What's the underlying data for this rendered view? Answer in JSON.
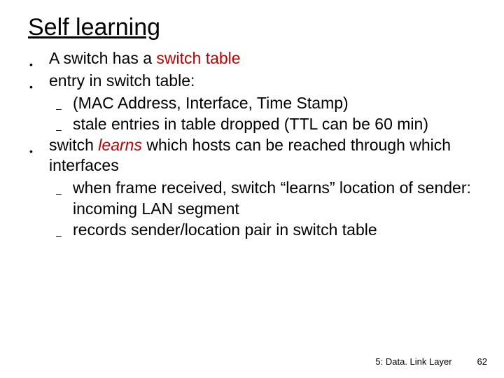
{
  "title": "Self learning",
  "bullets": [
    {
      "prefix": "A switch has a ",
      "emphasis": "switch table",
      "suffix": ""
    },
    {
      "prefix": "entry in switch table:",
      "emphasis": "",
      "suffix": "",
      "sub": [
        "(MAC Address, Interface, Time Stamp)",
        "stale entries in table dropped (TTL can be 60 min)"
      ]
    },
    {
      "prefix": "switch ",
      "emphasis": "learns",
      "suffix": " which hosts can be reached through which interfaces",
      "sub": [
        "when frame received, switch “learns”  location of sender: incoming LAN segment",
        "records sender/location pair in switch table"
      ]
    }
  ],
  "footer": {
    "section": "5: Data. Link Layer",
    "page": "62"
  },
  "colors": {
    "background": "#ffffff",
    "text": "#000000",
    "emphasis": "#c00000"
  },
  "typography": {
    "title_fontsize": 34,
    "body_fontsize": 23,
    "footer_fontsize": 13,
    "font_family": "Arial"
  }
}
